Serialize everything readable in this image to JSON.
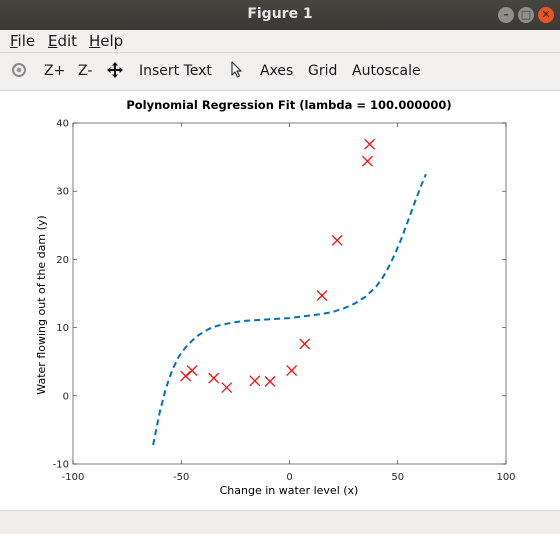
{
  "window": {
    "title": "Figure 1",
    "controls": {
      "minimize": "–",
      "maximize": "□",
      "close": "✕"
    }
  },
  "menubar": {
    "items": [
      "File",
      "Edit",
      "Help"
    ]
  },
  "toolbar": {
    "zoom_in": "Z+",
    "zoom_out": "Z-",
    "insert_text": "Insert Text",
    "axes": "Axes",
    "grid": "Grid",
    "autoscale": "Autoscale",
    "icons": [
      "rotate-icon",
      "pan-icon",
      "select-pointer-icon"
    ]
  },
  "chart_data": {
    "type": "scatter",
    "title": "Polynomial Regression Fit (lambda = 100.000000)",
    "xlabel": "Change in water level (x)",
    "ylabel": "Water flowing out of the dam (y)",
    "xlim": [
      -100,
      100
    ],
    "ylim": [
      -10,
      40
    ],
    "xticks": [
      "-100",
      "-50",
      "0",
      "50",
      "100"
    ],
    "yticks": [
      "-10",
      "0",
      "10",
      "20",
      "30",
      "40"
    ],
    "grid": false,
    "series": [
      {
        "kind": "markers",
        "marker": "x",
        "color": "#ff0000",
        "x": [
          -48,
          -45,
          -35,
          -29,
          -16,
          -9,
          1,
          7,
          15,
          22,
          36,
          37
        ],
        "y": [
          2.9,
          3.7,
          2.6,
          1.2,
          2.2,
          2.1,
          3.7,
          7.6,
          14.7,
          22.8,
          34.4,
          36.9
        ]
      },
      {
        "kind": "line",
        "style": "dashed",
        "color": "#0072bd",
        "x": [
          -63,
          -60,
          -57,
          -54,
          -51,
          -48,
          -45,
          -42,
          -39,
          -36,
          -33,
          -30,
          -25,
          -20,
          -15,
          -10,
          -5,
          0,
          5,
          10,
          15,
          20,
          25,
          30,
          35,
          40,
          43,
          46,
          49,
          52,
          55,
          58,
          61,
          63
        ],
        "y": [
          -7.2,
          -2.5,
          1.2,
          3.9,
          5.8,
          7.1,
          8.1,
          8.9,
          9.5,
          10.0,
          10.3,
          10.5,
          10.8,
          11.0,
          11.1,
          11.2,
          11.3,
          11.4,
          11.6,
          11.8,
          12.0,
          12.3,
          12.8,
          13.5,
          14.5,
          16.0,
          17.3,
          19.0,
          21.0,
          23.3,
          25.9,
          28.5,
          31.0,
          32.5
        ]
      }
    ]
  }
}
